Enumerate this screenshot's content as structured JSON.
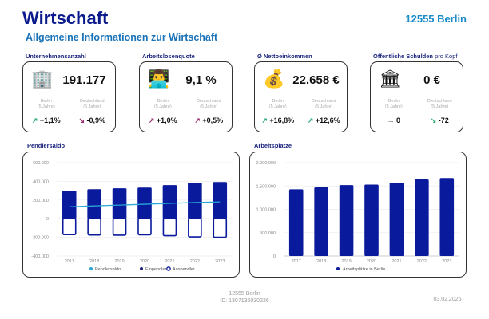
{
  "header": {
    "title": "Wirtschaft",
    "subtitle": "Allgemeine Informationen zur Wirtschaft",
    "location": "12555 Berlin"
  },
  "kpis": [
    {
      "label": "Unternehmensanzahl",
      "label_suffix": "",
      "icon": "office-building-icon",
      "glyph": "🏢",
      "value": "191.177",
      "left_label": "Berlin",
      "right_label": "Deutschland",
      "period": "(5 Jahre)",
      "left_trend": "up",
      "left_value": "+1,1%",
      "right_trend": "down",
      "right_value": "-0,9%"
    },
    {
      "label": "Arbeitslosenquote",
      "label_suffix": "",
      "icon": "person-at-laptop-icon",
      "glyph": "👨‍💻",
      "value": "9,1 %",
      "left_label": "Berlin",
      "right_label": "Deutschland",
      "period": "(5 Jahre)",
      "left_trend": "up-bad",
      "left_value": "+1,0%",
      "right_trend": "up-bad",
      "right_value": "+0,5%"
    },
    {
      "label": "Ø Nettoeinkommen",
      "label_suffix": "",
      "icon": "money-bag-icon",
      "glyph": "💰",
      "value": "22.658 €",
      "left_label": "Berlin",
      "right_label": "Deutschland",
      "period": "(5 Jahre)",
      "left_trend": "up",
      "left_value": "+16,8%",
      "right_trend": "up",
      "right_value": "+12,6%"
    },
    {
      "label": "Öffentliche Schulden",
      "label_suffix": "pro Kopf",
      "icon": "bank-building-icon",
      "glyph": "🏛",
      "value": "0 €",
      "left_label": "Berlin",
      "right_label": "Deutschland",
      "period": "(5 Jahre)",
      "left_trend": "flat",
      "left_value": "0",
      "right_trend": "down-good",
      "right_value": "-72"
    }
  ],
  "colors": {
    "navy": "#0a1a9c",
    "line": "#2aa6d6",
    "up": "#2aa872",
    "bad": "#9b2d6e"
  },
  "chart_data": [
    {
      "type": "bar",
      "title": "Pendlersaldo",
      "categories": [
        "2017",
        "2018",
        "2019",
        "2020",
        "2021",
        "2022",
        "2023"
      ],
      "ylim": [
        -400000,
        600000
      ],
      "yticks": [
        "600.000",
        "400.000",
        "200.000",
        "0",
        "-200.000",
        "-400.000"
      ],
      "ytick_values": [
        600000,
        400000,
        200000,
        0,
        -200000,
        -400000
      ],
      "series": [
        {
          "name": "Pendlersaldo",
          "type": "line",
          "values": [
            128000,
            137000,
            146000,
            155000,
            164000,
            174000,
            180000
          ]
        },
        {
          "name": "Einpendler",
          "type": "bar",
          "values": [
            300000,
            316000,
            325000,
            333000,
            360000,
            385000,
            393000
          ]
        },
        {
          "name": "Auspendler",
          "type": "bar",
          "values": [
            -171000,
            -175000,
            -177000,
            -173000,
            -183000,
            -195000,
            -200000
          ]
        }
      ],
      "legend": "bottom",
      "grid": true
    },
    {
      "type": "bar",
      "title": "Arbeitsplätze",
      "categories": [
        "2017",
        "2018",
        "2019",
        "2020",
        "2021",
        "2022",
        "2023"
      ],
      "ylim": [
        0,
        2000000
      ],
      "yticks": [
        "2.000.000",
        "1.500.000",
        "1.000.000",
        "500.000",
        "0"
      ],
      "ytick_values": [
        2000000,
        1500000,
        1000000,
        500000,
        0
      ],
      "series": [
        {
          "name": "Arbeitsplätze in Berlin",
          "values": [
            1430000,
            1470000,
            1520000,
            1530000,
            1570000,
            1640000,
            1670000
          ]
        }
      ],
      "legend": "bottom",
      "grid": true
    }
  ],
  "footer": {
    "location": "12555 Berlin",
    "id": "ID: 1307136030226",
    "date": "03.02.2026"
  }
}
